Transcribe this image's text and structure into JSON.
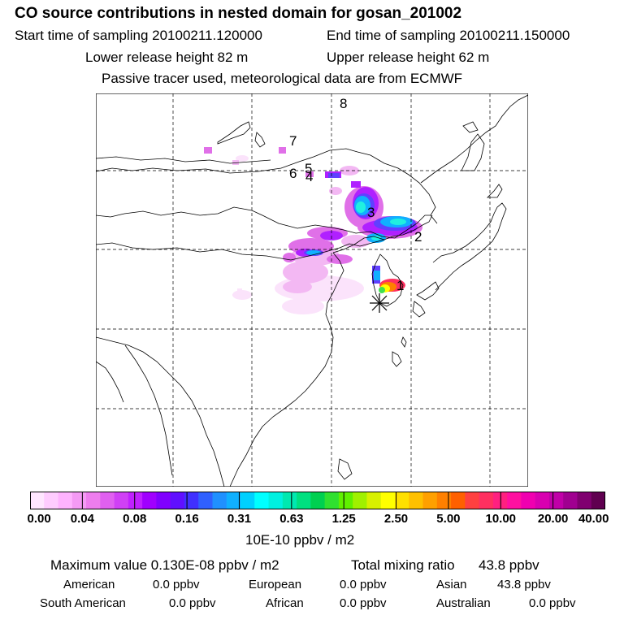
{
  "header": {
    "title": "CO  source contributions in nested domain for gosan_201002",
    "start": "Start time of sampling 20100211.120000",
    "end": "End time of sampling 20100211.150000",
    "lower": "Lower release height   82 m",
    "upper": "Upper release height   62 m",
    "tracer": "Passive tracer used, meteorological data are from ECMWF"
  },
  "map": {
    "site_labels": [
      "1",
      "2",
      "3",
      "4",
      "5",
      "6",
      "7",
      "8"
    ]
  },
  "colorbar": {
    "ticks": [
      "0.00",
      "0.04",
      "0.08",
      "0.16",
      "0.31",
      "0.63",
      "1.25",
      "2.50",
      "5.00",
      "10.00",
      "20.00",
      "40.00"
    ],
    "units": "10E-10 ppbv / m2",
    "colors": [
      "#ffe6ff",
      "#ffccff",
      "#ffb3ff",
      "#f59af5",
      "#ee7dee",
      "#e060f0",
      "#d040f5",
      "#c020ff",
      "#a000ff",
      "#8000ff",
      "#6010ff",
      "#4030ff",
      "#3060ff",
      "#2090ff",
      "#10b0ff",
      "#00d0ff",
      "#00ffff",
      "#00f0e0",
      "#00e8b0",
      "#00e080",
      "#00d050",
      "#30e030",
      "#60f000",
      "#a0f000",
      "#d8f000",
      "#ffff00",
      "#ffe000",
      "#ffc000",
      "#ffa000",
      "#ff8000",
      "#ff6000",
      "#ff4040",
      "#ff3060",
      "#ff2080",
      "#ff10a0",
      "#f000b0",
      "#d800b0",
      "#c000a8",
      "#a00090",
      "#800070",
      "#600050"
    ]
  },
  "stats": {
    "max_value": "Maximum value  0.130E-08 ppbv / m2",
    "total_label": "Total mixing ratio",
    "total_value": "43.8 ppbv",
    "regions": [
      {
        "name": "American",
        "value": "0.0 ppbv"
      },
      {
        "name": "European",
        "value": "0.0 ppbv"
      },
      {
        "name": "Asian",
        "value": "43.8 ppbv"
      },
      {
        "name": "South American",
        "value": "0.0 ppbv"
      },
      {
        "name": "African",
        "value": "0.0 ppbv"
      },
      {
        "name": "Australian",
        "value": "0.0 ppbv"
      }
    ]
  }
}
